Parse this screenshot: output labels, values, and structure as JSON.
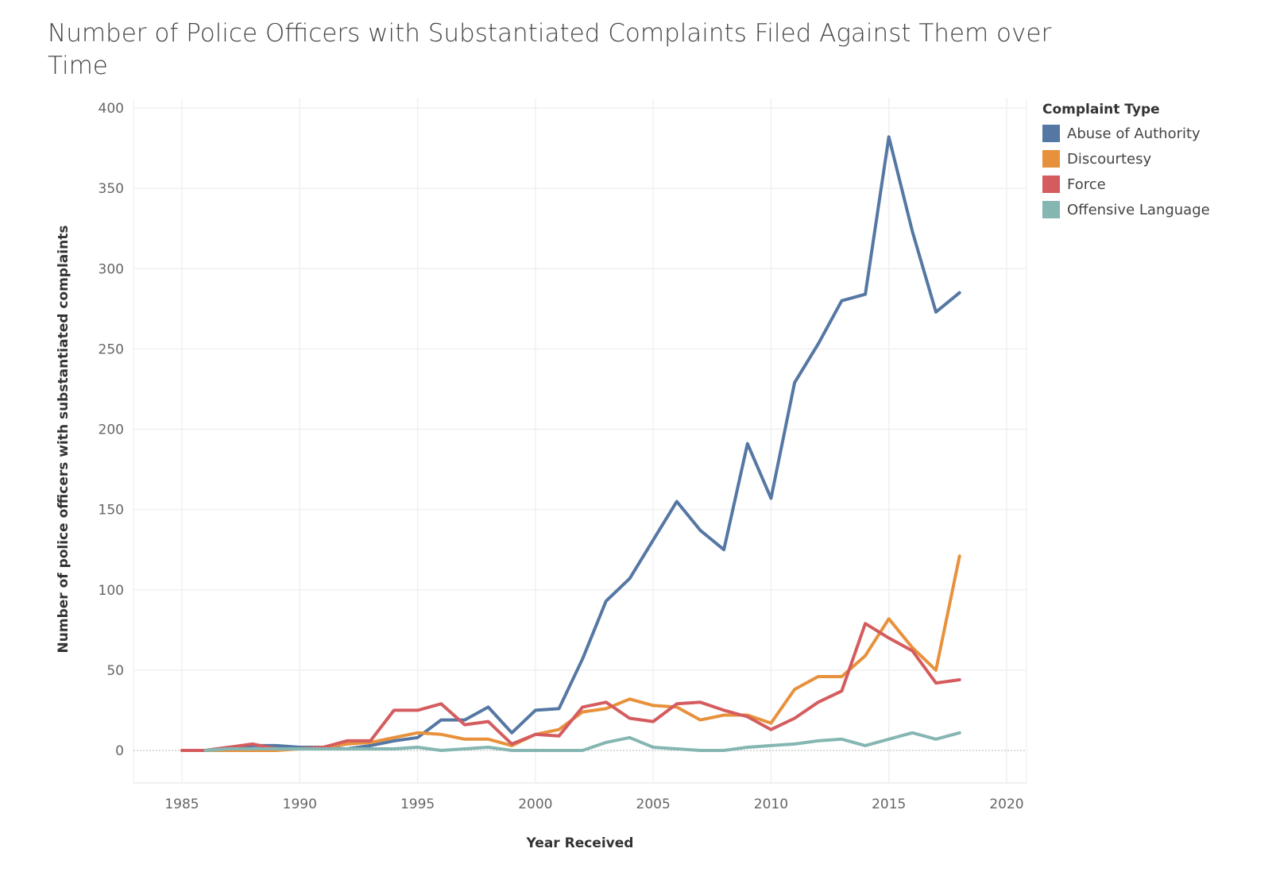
{
  "title": "Number of Police Officers with Substantiated Complaints Filed Against Them over Time",
  "chart_data": {
    "type": "line",
    "title": "Number of Police Officers with Substantiated Complaints Filed Against Them over Time",
    "xlabel": "Year Received",
    "ylabel": "Number of police officers with substantiated complaints",
    "xlim": [
      1983,
      2020
    ],
    "ylim": [
      -20,
      405
    ],
    "xticks": [
      1985,
      1990,
      1995,
      2000,
      2005,
      2010,
      2015,
      2020
    ],
    "yticks": [
      0,
      50,
      100,
      150,
      200,
      250,
      300,
      350,
      400
    ],
    "grid": true,
    "legend_title": "Complaint Type",
    "legend_position": "right",
    "series": [
      {
        "name": "Abuse of Authority",
        "color": "#5577a3",
        "x": [
          1986,
          1987,
          1988,
          1989,
          1990,
          1991,
          1992,
          1993,
          1994,
          1995,
          1996,
          1997,
          1998,
          1999,
          2000,
          2001,
          2002,
          2003,
          2004,
          2005,
          2006,
          2007,
          2008,
          2009,
          2010,
          2011,
          2012,
          2013,
          2014,
          2015,
          2016,
          2017,
          2018
        ],
        "y": [
          0,
          2,
          3,
          3,
          2,
          2,
          1,
          3,
          6,
          8,
          19,
          19,
          27,
          11,
          25,
          26,
          57,
          93,
          107,
          131,
          155,
          137,
          125,
          191,
          157,
          229,
          253,
          280,
          284,
          382,
          323,
          273,
          285
        ]
      },
      {
        "name": "Discourtesy",
        "color": "#e8913c",
        "x": [
          1985,
          1986,
          1987,
          1988,
          1989,
          1990,
          1991,
          1992,
          1993,
          1994,
          1995,
          1996,
          1997,
          1998,
          1999,
          2000,
          2001,
          2002,
          2003,
          2004,
          2005,
          2006,
          2007,
          2008,
          2009,
          2010,
          2011,
          2012,
          2013,
          2014,
          2015,
          2016,
          2017,
          2018
        ],
        "y": [
          0,
          0,
          0,
          0,
          0,
          1,
          2,
          4,
          5,
          8,
          11,
          10,
          7,
          7,
          3,
          10,
          13,
          24,
          26,
          32,
          28,
          27,
          19,
          22,
          22,
          17,
          38,
          46,
          46,
          59,
          82,
          64,
          50,
          121
        ]
      },
      {
        "name": "Force",
        "color": "#d45c5f",
        "x": [
          1985,
          1986,
          1987,
          1988,
          1989,
          1990,
          1991,
          1992,
          1993,
          1994,
          1995,
          1996,
          1997,
          1998,
          1999,
          2000,
          2001,
          2002,
          2003,
          2004,
          2005,
          2006,
          2007,
          2008,
          2009,
          2010,
          2011,
          2012,
          2013,
          2014,
          2015,
          2016,
          2017,
          2018
        ],
        "y": [
          0,
          0,
          2,
          4,
          1,
          1,
          2,
          6,
          6,
          25,
          25,
          29,
          16,
          18,
          4,
          10,
          9,
          27,
          30,
          20,
          18,
          29,
          30,
          25,
          21,
          13,
          20,
          30,
          37,
          79,
          70,
          62,
          42,
          44
        ]
      },
      {
        "name": "Offensive Language",
        "color": "#85b6b2",
        "x": [
          1986,
          1987,
          1988,
          1989,
          1990,
          1991,
          1992,
          1993,
          1994,
          1995,
          1996,
          1997,
          1998,
          1999,
          2000,
          2001,
          2002,
          2003,
          2004,
          2005,
          2006,
          2007,
          2008,
          2009,
          2010,
          2011,
          2012,
          2013,
          2014,
          2015,
          2016,
          2017,
          2018
        ],
        "y": [
          0,
          1,
          1,
          1,
          1,
          1,
          1,
          1,
          1,
          2,
          0,
          1,
          2,
          0,
          0,
          0,
          0,
          5,
          8,
          2,
          1,
          0,
          0,
          2,
          3,
          4,
          6,
          7,
          3,
          7,
          11,
          7,
          11
        ]
      }
    ]
  }
}
